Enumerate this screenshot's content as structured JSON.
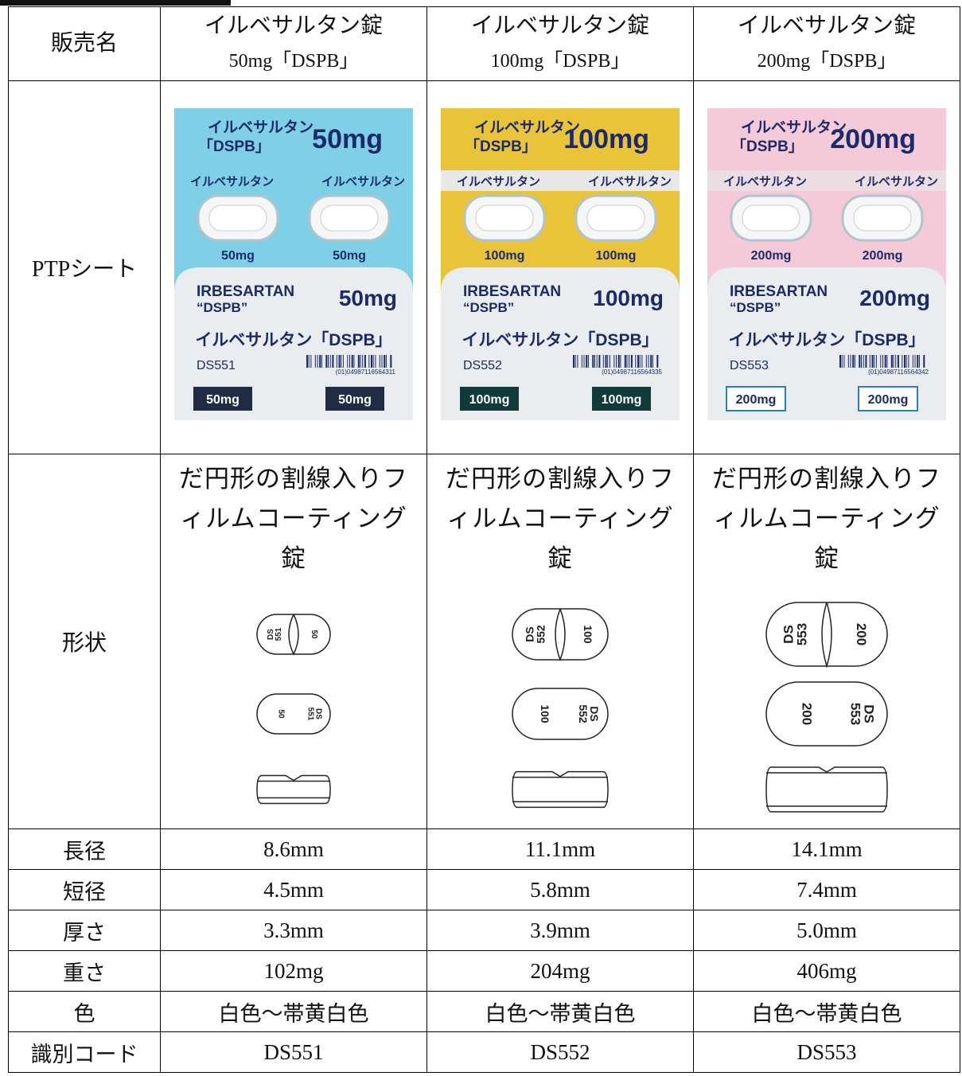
{
  "table": {
    "row_labels": [
      "販売名",
      "PTPシート",
      "形状",
      "長径",
      "短径",
      "厚さ",
      "重さ",
      "色",
      "識別コード"
    ],
    "products": [
      {
        "name": "イルベサルタン錠",
        "strength_name": "50mg「DSPB」",
        "ptp": {
          "brand_jp": "イルベサルタン",
          "brand_tag": "「DSPB」",
          "strength": "50mg",
          "tablet_label": "イルベサルタン",
          "en_name": "IRBESARTAN",
          "en_tag": "“DSPB”",
          "full_jp": "イルベサルタン「DSPB」",
          "code": "DS551",
          "barcode": "(01)04987116564311"
        },
        "shape_text": "だ円形の割線入りフィルムコーティング錠",
        "imprint": {
          "maker": "DS",
          "number": "551",
          "strength": "50"
        },
        "major_axis": "8.6mm",
        "minor_axis": "4.5mm",
        "thickness": "3.3mm",
        "weight": "102mg",
        "color": "白色～帯黄白色",
        "code": "DS551"
      },
      {
        "name": "イルベサルタン錠",
        "strength_name": "100mg「DSPB」",
        "ptp": {
          "brand_jp": "イルベサルタン",
          "brand_tag": "「DSPB」",
          "strength": "100mg",
          "tablet_label": "イルベサルタン",
          "en_name": "IRBESARTAN",
          "en_tag": "“DSPB”",
          "full_jp": "イルベサルタン「DSPB」",
          "code": "DS552",
          "barcode": "(01)04987116564335"
        },
        "shape_text": "だ円形の割線入りフィルムコーティング錠",
        "imprint": {
          "maker": "DS",
          "number": "552",
          "strength": "100"
        },
        "major_axis": "11.1mm",
        "minor_axis": "5.8mm",
        "thickness": "3.9mm",
        "weight": "204mg",
        "color": "白色～帯黄白色",
        "code": "DS552"
      },
      {
        "name": "イルベサルタン錠",
        "strength_name": "200mg「DSPB」",
        "ptp": {
          "brand_jp": "イルベサルタン",
          "brand_tag": "「DSPB」",
          "strength": "200mg",
          "tablet_label": "イルベサルタン",
          "en_name": "IRBESARTAN",
          "en_tag": "“DSPB”",
          "full_jp": "イルベサルタン「DSPB」",
          "code": "DS553",
          "barcode": "(01)04987116564342"
        },
        "shape_text": "だ円形の割線入りフィルムコーティング錠",
        "imprint": {
          "maker": "DS",
          "number": "553",
          "strength": "200"
        },
        "major_axis": "14.1mm",
        "minor_axis": "7.4mm",
        "thickness": "5.0mm",
        "weight": "406mg",
        "color": "白色～帯黄白色",
        "code": "DS553"
      }
    ]
  }
}
